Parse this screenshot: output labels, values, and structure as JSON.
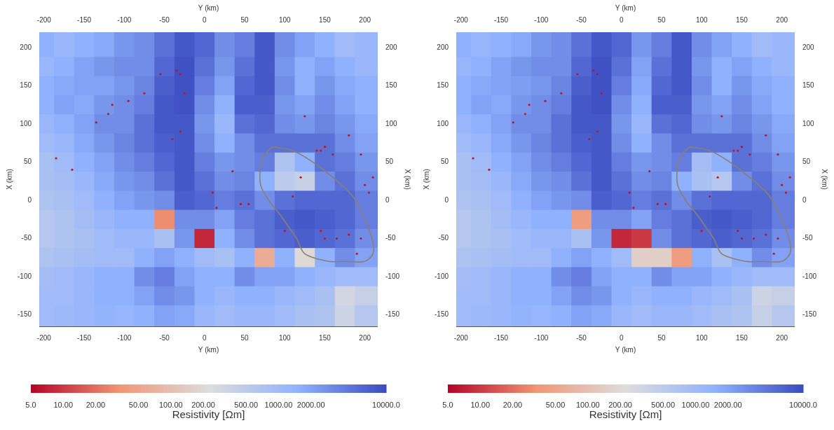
{
  "chart_data": [
    {
      "type": "heatmap",
      "x_label": "Y (km)",
      "y_label": "X (km)",
      "grid": false,
      "xlim": [
        -206,
        216
      ],
      "ylim": [
        -165,
        220
      ],
      "xticks": [
        -200,
        -150,
        -100,
        -50,
        0,
        50,
        100,
        150,
        200
      ],
      "yticks": [
        -150,
        -100,
        -50,
        0,
        50,
        100,
        150,
        200
      ],
      "heatmap": {
        "x": [
          -200,
          -175,
          -150,
          -125,
          -100,
          -75,
          -50,
          -25,
          0,
          25,
          50,
          75,
          100,
          125,
          150,
          175,
          200
        ],
        "y": [
          200,
          175,
          150,
          125,
          100,
          75,
          50,
          25,
          0,
          -25,
          -50,
          -75,
          -100,
          -125,
          -150
        ],
        "values": [
          [
            1500,
            1200,
            1500,
            1800,
            2500,
            3000,
            5000,
            8000,
            6000,
            3000,
            4000,
            8000,
            3000,
            2000,
            1500,
            1000,
            1200
          ],
          [
            1200,
            1500,
            2000,
            2500,
            3000,
            3000,
            6000,
            9000,
            5000,
            2500,
            5000,
            8000,
            2500,
            1500,
            2000,
            1500,
            1200
          ],
          [
            1500,
            1800,
            2000,
            2000,
            2500,
            3500,
            7000,
            9000,
            4000,
            2000,
            6000,
            8000,
            3000,
            1500,
            2500,
            1800,
            1500
          ],
          [
            1500,
            2000,
            1800,
            2500,
            3000,
            4000,
            8000,
            9000,
            3000,
            1500,
            7000,
            7000,
            2500,
            2000,
            3000,
            2000,
            1500
          ],
          [
            1200,
            1500,
            2000,
            3000,
            3000,
            5000,
            8000,
            8000,
            2500,
            1200,
            5000,
            6000,
            3000,
            2500,
            3500,
            2500,
            1800
          ],
          [
            1000,
            1200,
            1800,
            2500,
            3500,
            5000,
            7000,
            8000,
            3000,
            1500,
            3000,
            5000,
            5000,
            5000,
            5000,
            3000,
            2000
          ],
          [
            800,
            1000,
            1500,
            2000,
            3000,
            4000,
            6000,
            8000,
            4000,
            2500,
            3000,
            4000,
            700,
            1500,
            5000,
            4000,
            2500
          ],
          [
            800,
            900,
            1200,
            1800,
            2500,
            3000,
            5000,
            8000,
            5000,
            3000,
            3500,
            1500,
            500,
            400,
            3000,
            5000,
            3000
          ],
          [
            700,
            800,
            1000,
            1500,
            2000,
            2500,
            3000,
            7000,
            6000,
            4000,
            5000,
            3000,
            5000,
            6000,
            6000,
            6000,
            4000
          ],
          [
            600,
            700,
            900,
            1200,
            1500,
            1500,
            30,
            3000,
            3000,
            2000,
            4000,
            5000,
            7000,
            8000,
            7000,
            6000,
            4000
          ],
          [
            600,
            700,
            800,
            1000,
            1200,
            1200,
            800,
            2500,
            8,
            1500,
            3000,
            5000,
            6000,
            7000,
            6000,
            5000,
            3000
          ],
          [
            700,
            800,
            900,
            1000,
            1000,
            1500,
            2000,
            1500,
            1000,
            800,
            1500,
            60,
            1500,
            200,
            1500,
            3000,
            2000
          ],
          [
            900,
            1000,
            1200,
            1500,
            1500,
            3000,
            4000,
            2000,
            1500,
            1500,
            3000,
            2000,
            2000,
            1500,
            1200,
            1000,
            1000
          ],
          [
            1000,
            1000,
            1200,
            1500,
            1500,
            2000,
            3000,
            2500,
            1500,
            1200,
            1500,
            1500,
            1200,
            1000,
            800,
            300,
            400
          ],
          [
            1000,
            1100,
            1200,
            1400,
            1300,
            1500,
            2000,
            1800,
            1200,
            1000,
            1200,
            1200,
            1000,
            800,
            700,
            350,
            600
          ]
        ]
      },
      "stations": {
        "color": "#c0141e",
        "x": [
          -185,
          -165,
          -135,
          -120,
          -115,
          -95,
          -75,
          -55,
          -35,
          -30,
          -25,
          -30,
          -40,
          35,
          15,
          45,
          55,
          10,
          125,
          110,
          140,
          145,
          150,
          160,
          180,
          195,
          200,
          205,
          210,
          150,
          165,
          180,
          195,
          190,
          100,
          120,
          145
        ],
        "y": [
          55,
          40,
          102,
          113,
          125,
          130,
          140,
          165,
          170,
          165,
          140,
          90,
          80,
          38,
          -10,
          -5,
          -5,
          10,
          110,
          5,
          65,
          65,
          70,
          60,
          85,
          60,
          20,
          10,
          30,
          -50,
          -50,
          -45,
          -50,
          -70,
          -40,
          30,
          -40
        ]
      },
      "outline": {
        "color": "#8c7f70",
        "x": [
          85,
          110,
          135,
          160,
          185,
          200,
          210,
          210,
          200,
          175,
          155,
          125,
          115,
          105,
          95,
          80,
          70,
          70,
          75
        ],
        "y": [
          70,
          65,
          50,
          30,
          5,
          -25,
          -55,
          -70,
          -80,
          -80,
          -80,
          -70,
          -50,
          -35,
          -20,
          0,
          20,
          45,
          60
        ]
      },
      "colorbar": {
        "label": "Resistivity [Ωm]",
        "log": true,
        "range": [
          5,
          10000
        ],
        "ticks": [
          {
            "value": 5,
            "label": "5.0"
          },
          {
            "value": 10,
            "label": "10.00"
          },
          {
            "value": 20,
            "label": "20.00"
          },
          {
            "value": 50,
            "label": "50.00"
          },
          {
            "value": 100,
            "label": "100.00"
          },
          {
            "value": 200,
            "label": "200.00"
          },
          {
            "value": 500,
            "label": "500.00"
          },
          {
            "value": 1000,
            "label": "1000.00"
          },
          {
            "value": 2000,
            "label": "2000.00"
          },
          {
            "value": 10000,
            "label": "10000.0"
          }
        ]
      }
    },
    {
      "type": "heatmap",
      "x_label": "Y (km)",
      "y_label": "X (km)",
      "grid": false,
      "xlim": [
        -206,
        216
      ],
      "ylim": [
        -165,
        220
      ],
      "xticks": [
        -200,
        -150,
        -100,
        -50,
        0,
        50,
        100,
        150,
        200
      ],
      "yticks": [
        -150,
        -100,
        -50,
        0,
        50,
        100,
        150,
        200
      ],
      "heatmap": {
        "x": [
          -200,
          -175,
          -150,
          -125,
          -100,
          -75,
          -50,
          -25,
          0,
          25,
          50,
          75,
          100,
          125,
          150,
          175,
          200
        ],
        "y": [
          200,
          175,
          150,
          125,
          100,
          75,
          50,
          25,
          0,
          -25,
          -50,
          -75,
          -100,
          -125,
          -150
        ],
        "values": [
          [
            1500,
            1300,
            1500,
            1800,
            2500,
            3000,
            5000,
            8000,
            6000,
            2500,
            4000,
            8000,
            3000,
            2000,
            1500,
            1000,
            1200
          ],
          [
            1300,
            1500,
            2000,
            2500,
            3000,
            3000,
            6000,
            9000,
            5000,
            2000,
            5000,
            8000,
            2500,
            1500,
            2000,
            1500,
            1200
          ],
          [
            1500,
            1800,
            2000,
            2200,
            2500,
            3500,
            7000,
            9000,
            4000,
            1800,
            6000,
            8000,
            3000,
            1500,
            2500,
            1800,
            1500
          ],
          [
            1500,
            2000,
            1800,
            2500,
            3000,
            4000,
            8000,
            9000,
            3000,
            1500,
            7000,
            7000,
            2500,
            2000,
            3000,
            2000,
            1500
          ],
          [
            1200,
            1500,
            2000,
            3000,
            3000,
            5000,
            8000,
            8000,
            2500,
            1200,
            5000,
            6000,
            3000,
            2500,
            3500,
            2500,
            1800
          ],
          [
            1000,
            1200,
            1800,
            2500,
            3500,
            5000,
            7000,
            8000,
            3000,
            1500,
            3000,
            5000,
            5000,
            5000,
            5000,
            3000,
            2000
          ],
          [
            800,
            1000,
            1500,
            2000,
            3000,
            4000,
            6000,
            8000,
            4000,
            2500,
            3000,
            4000,
            900,
            1500,
            5000,
            4000,
            2500
          ],
          [
            800,
            900,
            1200,
            1800,
            2500,
            3000,
            5000,
            8000,
            5000,
            3000,
            3500,
            1500,
            800,
            600,
            3000,
            5000,
            3000
          ],
          [
            700,
            800,
            1000,
            1500,
            2000,
            2500,
            3000,
            7000,
            6000,
            4000,
            5000,
            3000,
            5000,
            6000,
            6000,
            6000,
            4000
          ],
          [
            600,
            700,
            900,
            1200,
            1500,
            1500,
            40,
            3000,
            3000,
            2000,
            4000,
            5000,
            7000,
            8000,
            7000,
            6000,
            4000
          ],
          [
            600,
            700,
            800,
            1000,
            1200,
            1200,
            800,
            2500,
            8,
            10,
            3000,
            5000,
            6000,
            7000,
            6000,
            5000,
            3000
          ],
          [
            700,
            800,
            900,
            1000,
            1000,
            1500,
            2000,
            1500,
            1000,
            150,
            150,
            40,
            1500,
            800,
            1500,
            3000,
            2000
          ],
          [
            900,
            1000,
            1200,
            1500,
            1500,
            3000,
            4000,
            2000,
            1500,
            1500,
            3000,
            2000,
            2000,
            1500,
            1200,
            1000,
            1000
          ],
          [
            1000,
            1000,
            1200,
            1500,
            1500,
            2000,
            3000,
            2500,
            1500,
            1200,
            1500,
            1500,
            1200,
            1000,
            800,
            350,
            400
          ],
          [
            1000,
            1100,
            1200,
            1400,
            1300,
            1500,
            2000,
            1800,
            1200,
            1000,
            1200,
            1200,
            1000,
            800,
            700,
            400,
            600
          ]
        ]
      },
      "stations": {
        "color": "#c0141e",
        "x": [
          -185,
          -165,
          -135,
          -120,
          -115,
          -95,
          -75,
          -55,
          -35,
          -30,
          -25,
          -30,
          -40,
          35,
          15,
          45,
          55,
          10,
          125,
          110,
          140,
          145,
          150,
          160,
          180,
          195,
          200,
          205,
          210,
          150,
          165,
          180,
          195,
          190,
          100,
          120,
          145
        ],
        "y": [
          55,
          40,
          102,
          113,
          125,
          130,
          140,
          165,
          170,
          165,
          140,
          90,
          80,
          38,
          -10,
          -5,
          -5,
          10,
          110,
          5,
          65,
          65,
          70,
          60,
          85,
          60,
          20,
          10,
          30,
          -50,
          -50,
          -45,
          -50,
          -70,
          -40,
          30,
          -40
        ]
      },
      "outline": {
        "color": "#8c7f70",
        "x": [
          85,
          110,
          135,
          160,
          185,
          200,
          210,
          210,
          200,
          175,
          155,
          125,
          115,
          105,
          95,
          80,
          70,
          70,
          75
        ],
        "y": [
          70,
          65,
          50,
          30,
          5,
          -25,
          -55,
          -70,
          -80,
          -80,
          -80,
          -70,
          -50,
          -35,
          -20,
          0,
          20,
          45,
          60
        ]
      },
      "colorbar": {
        "label": "Resistivity [Ωm]",
        "log": true,
        "range": [
          5,
          10000
        ],
        "ticks": [
          {
            "value": 5,
            "label": "5.0"
          },
          {
            "value": 10,
            "label": "10.00"
          },
          {
            "value": 20,
            "label": "20.00"
          },
          {
            "value": 50,
            "label": "50.00"
          },
          {
            "value": 100,
            "label": "100.00"
          },
          {
            "value": 200,
            "label": "200.00"
          },
          {
            "value": 500,
            "label": "500.00"
          },
          {
            "value": 1000,
            "label": "1000.00"
          },
          {
            "value": 2000,
            "label": "2000.00"
          },
          {
            "value": 10000,
            "label": "10000.0"
          }
        ]
      }
    }
  ]
}
